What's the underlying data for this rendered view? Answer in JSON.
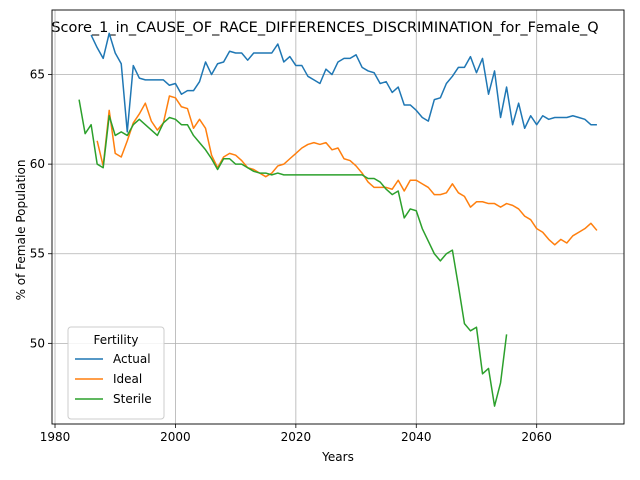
{
  "chart_data": {
    "type": "line",
    "title": "Score_1_in_CAUSE_OF_RACE_DIFFERENCES_DISCRIMINATION_for_Female_Q",
    "xlabel": "Years",
    "ylabel": "% of Female Population",
    "xlim": [
      1979.5,
      2074.5
    ],
    "ylim": [
      45.5,
      68.6
    ],
    "xticks": [
      1980,
      2000,
      2020,
      2040,
      2060
    ],
    "yticks": [
      50,
      55,
      60,
      65
    ],
    "grid": true,
    "legend": {
      "title": "Fertility",
      "placement": "lower-left"
    },
    "series": [
      {
        "name": "Actual",
        "color": "#1f77b4",
        "points": [
          [
            1986,
            67.2
          ],
          [
            1987,
            66.5
          ],
          [
            1988,
            65.9
          ],
          [
            1989,
            67.3
          ],
          [
            1990,
            66.2
          ],
          [
            1991,
            65.6
          ],
          [
            1992,
            61.8
          ],
          [
            1993,
            65.5
          ],
          [
            1994,
            64.8
          ],
          [
            1995,
            64.7
          ],
          [
            1996,
            64.7
          ],
          [
            1997,
            64.7
          ],
          [
            1998,
            64.7
          ],
          [
            1999,
            64.4
          ],
          [
            2000,
            64.5
          ],
          [
            2001,
            63.9
          ],
          [
            2002,
            64.1
          ],
          [
            2003,
            64.1
          ],
          [
            2004,
            64.6
          ],
          [
            2005,
            65.7
          ],
          [
            2006,
            65.0
          ],
          [
            2007,
            65.6
          ],
          [
            2008,
            65.7
          ],
          [
            2009,
            66.3
          ],
          [
            2010,
            66.2
          ],
          [
            2011,
            66.2
          ],
          [
            2012,
            65.8
          ],
          [
            2013,
            66.2
          ],
          [
            2014,
            66.2
          ],
          [
            2015,
            66.2
          ],
          [
            2016,
            66.2
          ],
          [
            2017,
            66.7
          ],
          [
            2018,
            65.7
          ],
          [
            2019,
            66.0
          ],
          [
            2020,
            65.5
          ],
          [
            2021,
            65.5
          ],
          [
            2022,
            64.9
          ],
          [
            2023,
            64.7
          ],
          [
            2024,
            64.5
          ],
          [
            2025,
            65.3
          ],
          [
            2026,
            65.0
          ],
          [
            2027,
            65.7
          ],
          [
            2028,
            65.9
          ],
          [
            2029,
            65.9
          ],
          [
            2030,
            66.1
          ],
          [
            2031,
            65.4
          ],
          [
            2032,
            65.2
          ],
          [
            2033,
            65.1
          ],
          [
            2034,
            64.5
          ],
          [
            2035,
            64.6
          ],
          [
            2036,
            64.0
          ],
          [
            2037,
            64.3
          ],
          [
            2038,
            63.3
          ],
          [
            2039,
            63.3
          ],
          [
            2040,
            63.0
          ],
          [
            2041,
            62.6
          ],
          [
            2042,
            62.4
          ],
          [
            2043,
            63.6
          ],
          [
            2044,
            63.7
          ],
          [
            2045,
            64.5
          ],
          [
            2046,
            64.9
          ],
          [
            2047,
            65.4
          ],
          [
            2048,
            65.4
          ],
          [
            2049,
            66.0
          ],
          [
            2050,
            65.1
          ],
          [
            2051,
            65.9
          ],
          [
            2052,
            63.9
          ],
          [
            2053,
            65.2
          ],
          [
            2054,
            62.6
          ],
          [
            2055,
            64.3
          ],
          [
            2056,
            62.2
          ],
          [
            2057,
            63.4
          ],
          [
            2058,
            62.0
          ],
          [
            2059,
            62.7
          ],
          [
            2060,
            62.2
          ],
          [
            2061,
            62.7
          ],
          [
            2062,
            62.5
          ],
          [
            2063,
            62.6
          ],
          [
            2064,
            62.6
          ],
          [
            2065,
            62.6
          ],
          [
            2066,
            62.7
          ],
          [
            2067,
            62.6
          ],
          [
            2068,
            62.5
          ],
          [
            2069,
            62.2
          ],
          [
            2070,
            62.2
          ]
        ]
      },
      {
        "name": "Ideal",
        "color": "#ff7f0e",
        "points": [
          [
            1987,
            61.3
          ],
          [
            1988,
            59.9
          ],
          [
            1989,
            63.0
          ],
          [
            1990,
            60.6
          ],
          [
            1991,
            60.4
          ],
          [
            1992,
            61.3
          ],
          [
            1993,
            62.3
          ],
          [
            1994,
            62.8
          ],
          [
            1995,
            63.4
          ],
          [
            1996,
            62.4
          ],
          [
            1997,
            61.9
          ],
          [
            1998,
            62.3
          ],
          [
            1999,
            63.8
          ],
          [
            2000,
            63.7
          ],
          [
            2001,
            63.2
          ],
          [
            2002,
            63.1
          ],
          [
            2003,
            62.0
          ],
          [
            2004,
            62.5
          ],
          [
            2005,
            62.0
          ],
          [
            2006,
            60.5
          ],
          [
            2007,
            59.8
          ],
          [
            2008,
            60.4
          ],
          [
            2009,
            60.6
          ],
          [
            2010,
            60.5
          ],
          [
            2011,
            60.2
          ],
          [
            2012,
            59.8
          ],
          [
            2013,
            59.7
          ],
          [
            2014,
            59.5
          ],
          [
            2015,
            59.3
          ],
          [
            2016,
            59.5
          ],
          [
            2017,
            59.9
          ],
          [
            2018,
            60.0
          ],
          [
            2019,
            60.3
          ],
          [
            2020,
            60.6
          ],
          [
            2021,
            60.9
          ],
          [
            2022,
            61.1
          ],
          [
            2023,
            61.2
          ],
          [
            2024,
            61.1
          ],
          [
            2025,
            61.2
          ],
          [
            2026,
            60.8
          ],
          [
            2027,
            60.9
          ],
          [
            2028,
            60.3
          ],
          [
            2029,
            60.2
          ],
          [
            2030,
            59.9
          ],
          [
            2031,
            59.5
          ],
          [
            2032,
            59.0
          ],
          [
            2033,
            58.7
          ],
          [
            2034,
            58.7
          ],
          [
            2035,
            58.7
          ],
          [
            2036,
            58.6
          ],
          [
            2037,
            59.1
          ],
          [
            2038,
            58.5
          ],
          [
            2039,
            59.1
          ],
          [
            2040,
            59.1
          ],
          [
            2041,
            58.9
          ],
          [
            2042,
            58.7
          ],
          [
            2043,
            58.3
          ],
          [
            2044,
            58.3
          ],
          [
            2045,
            58.4
          ],
          [
            2046,
            58.9
          ],
          [
            2047,
            58.4
          ],
          [
            2048,
            58.2
          ],
          [
            2049,
            57.6
          ],
          [
            2050,
            57.9
          ],
          [
            2051,
            57.9
          ],
          [
            2052,
            57.8
          ],
          [
            2053,
            57.8
          ],
          [
            2054,
            57.6
          ],
          [
            2055,
            57.8
          ],
          [
            2056,
            57.7
          ],
          [
            2057,
            57.5
          ],
          [
            2058,
            57.1
          ],
          [
            2059,
            56.9
          ],
          [
            2060,
            56.4
          ],
          [
            2061,
            56.2
          ],
          [
            2062,
            55.8
          ],
          [
            2063,
            55.5
          ],
          [
            2064,
            55.8
          ],
          [
            2065,
            55.6
          ],
          [
            2066,
            56.0
          ],
          [
            2067,
            56.2
          ],
          [
            2068,
            56.4
          ],
          [
            2069,
            56.7
          ],
          [
            2070,
            56.3
          ]
        ]
      },
      {
        "name": "Sterile",
        "color": "#2ca02c",
        "points": [
          [
            1984,
            63.6
          ],
          [
            1985,
            61.7
          ],
          [
            1986,
            62.2
          ],
          [
            1987,
            60.0
          ],
          [
            1988,
            59.8
          ],
          [
            1989,
            62.7
          ],
          [
            1990,
            61.6
          ],
          [
            1991,
            61.8
          ],
          [
            1992,
            61.6
          ],
          [
            1993,
            62.2
          ],
          [
            1994,
            62.5
          ],
          [
            1995,
            62.2
          ],
          [
            1996,
            61.9
          ],
          [
            1997,
            61.6
          ],
          [
            1998,
            62.3
          ],
          [
            1999,
            62.6
          ],
          [
            2000,
            62.5
          ],
          [
            2001,
            62.2
          ],
          [
            2002,
            62.2
          ],
          [
            2003,
            61.6
          ],
          [
            2004,
            61.2
          ],
          [
            2005,
            60.8
          ],
          [
            2006,
            60.3
          ],
          [
            2007,
            59.7
          ],
          [
            2008,
            60.3
          ],
          [
            2009,
            60.3
          ],
          [
            2010,
            60.0
          ],
          [
            2011,
            60.0
          ],
          [
            2012,
            59.8
          ],
          [
            2013,
            59.6
          ],
          [
            2014,
            59.5
          ],
          [
            2015,
            59.5
          ],
          [
            2016,
            59.4
          ],
          [
            2017,
            59.5
          ],
          [
            2018,
            59.4
          ],
          [
            2019,
            59.4
          ],
          [
            2020,
            59.4
          ],
          [
            2021,
            59.4
          ],
          [
            2022,
            59.4
          ],
          [
            2023,
            59.4
          ],
          [
            2024,
            59.4
          ],
          [
            2025,
            59.4
          ],
          [
            2026,
            59.4
          ],
          [
            2027,
            59.4
          ],
          [
            2028,
            59.4
          ],
          [
            2029,
            59.4
          ],
          [
            2030,
            59.4
          ],
          [
            2031,
            59.4
          ],
          [
            2032,
            59.2
          ],
          [
            2033,
            59.2
          ],
          [
            2034,
            59.0
          ],
          [
            2035,
            58.6
          ],
          [
            2036,
            58.3
          ],
          [
            2037,
            58.5
          ],
          [
            2038,
            57.0
          ],
          [
            2039,
            57.5
          ],
          [
            2040,
            57.4
          ],
          [
            2041,
            56.4
          ],
          [
            2042,
            55.7
          ],
          [
            2043,
            55.0
          ],
          [
            2044,
            54.6
          ],
          [
            2045,
            55.0
          ],
          [
            2046,
            55.2
          ],
          [
            2047,
            53.2
          ],
          [
            2048,
            51.1
          ],
          [
            2049,
            50.7
          ],
          [
            2050,
            50.9
          ],
          [
            2051,
            48.3
          ],
          [
            2052,
            48.6
          ],
          [
            2053,
            46.5
          ],
          [
            2054,
            47.8
          ],
          [
            2055,
            50.5
          ]
        ]
      }
    ]
  }
}
